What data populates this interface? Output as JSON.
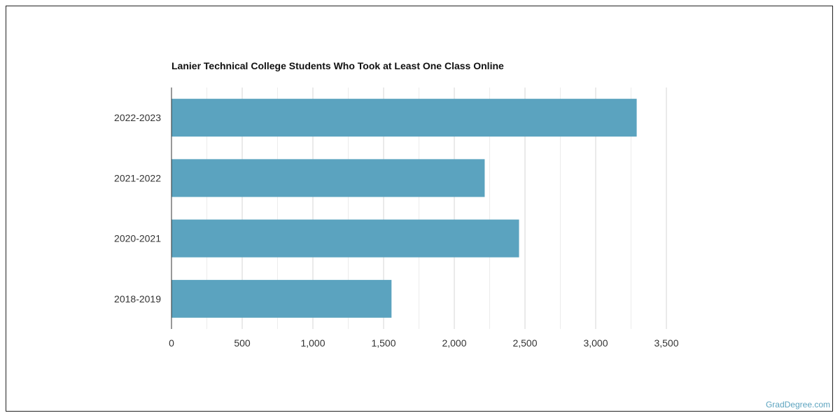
{
  "chart_data": {
    "type": "bar",
    "orientation": "horizontal",
    "title": "Lanier Technical College Students Who Took at Least One Class Online",
    "categories": [
      "2022-2023",
      "2021-2022",
      "2020-2021",
      "2018-2019"
    ],
    "values": [
      3290,
      2215,
      2458,
      1556
    ],
    "xlabel": "",
    "ylabel": "",
    "xlim": [
      0,
      3500
    ],
    "xticks": [
      0,
      500,
      1000,
      1500,
      2000,
      2500,
      3000,
      3500
    ],
    "xtick_labels": [
      "0",
      "500",
      "1,000",
      "1,500",
      "2,000",
      "2,500",
      "3,000",
      "3,500"
    ],
    "grid": true,
    "legend": "none",
    "bar_color": "#5ba3bf",
    "grid_color": "#dddddd"
  },
  "watermark": "GradDegree.com"
}
